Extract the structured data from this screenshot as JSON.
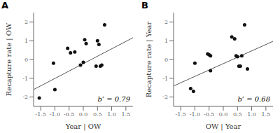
{
  "chart_data": [
    {
      "type": "scatter",
      "title": "A",
      "xlabel": "Year | OW",
      "ylabel": "Recapture rate | OW",
      "annotation": "b’ = 0.79",
      "xlim": [
        -1.75,
        1.75
      ],
      "ylim": [
        -2.5,
        2.5
      ],
      "xticks": [
        -1.5,
        {
          "value": -1.0,
          "label": "-1.0"
        },
        -0.5,
        {
          "value": 0.0,
          "label": "0.0"
        },
        0.5,
        {
          "value": 1.0,
          "label": "1.0"
        },
        1.5
      ],
      "yticks": [
        -2,
        -1,
        0,
        1,
        2
      ],
      "grid": false,
      "series": [
        {
          "type": "scatter",
          "color": "#111111",
          "x": [
            -1.55,
            -1.05,
            -1.0,
            -0.55,
            -0.45,
            -0.3,
            -0.1,
            0.0,
            0.05,
            0.1,
            0.45,
            0.5,
            0.55,
            0.6,
            0.65,
            0.75
          ],
          "values": [
            -2.05,
            -0.2,
            -1.6,
            0.6,
            0.35,
            0.4,
            -0.3,
            -0.15,
            1.05,
            0.85,
            -0.35,
            1.0,
            0.8,
            -0.35,
            -0.3,
            1.85
          ]
        },
        {
          "type": "line",
          "color": "#555555",
          "x": [
            -1.75,
            1.75
          ],
          "values": [
            -1.6025,
            1.1625
          ]
        }
      ]
    },
    {
      "type": "scatter",
      "title": "B",
      "xlabel": "OW | Year",
      "ylabel": "Recapture rate | Year",
      "annotation": "b’ = 0.68",
      "xlim": [
        -1.75,
        1.75
      ],
      "ylim": [
        -2.5,
        2.5
      ],
      "xticks": [
        -1.5,
        {
          "value": -1.0,
          "label": "-1.0"
        },
        -0.5,
        {
          "value": 0.0,
          "label": "0.0"
        },
        0.5,
        {
          "value": 1.0,
          "label": "1.0"
        },
        1.5
      ],
      "yticks": [
        -2,
        -1,
        0,
        1,
        2
      ],
      "grid": false,
      "series": [
        {
          "type": "scatter",
          "color": "#111111",
          "x": [
            -1.15,
            -1.05,
            -1.0,
            -0.55,
            -0.5,
            -0.45,
            -0.45,
            0.3,
            0.4,
            0.45,
            0.5,
            0.55,
            0.6,
            0.65,
            0.75,
            0.85
          ],
          "values": [
            -1.55,
            -1.7,
            -0.2,
            0.3,
            0.25,
            0.2,
            -0.6,
            1.2,
            1.1,
            0.2,
            0.15,
            -0.35,
            -0.35,
            0.2,
            1.85,
            -0.5
          ]
        },
        {
          "type": "line",
          "color": "#555555",
          "x": [
            -1.75,
            1.75
          ],
          "values": [
            -1.41,
            0.97
          ]
        }
      ]
    }
  ]
}
